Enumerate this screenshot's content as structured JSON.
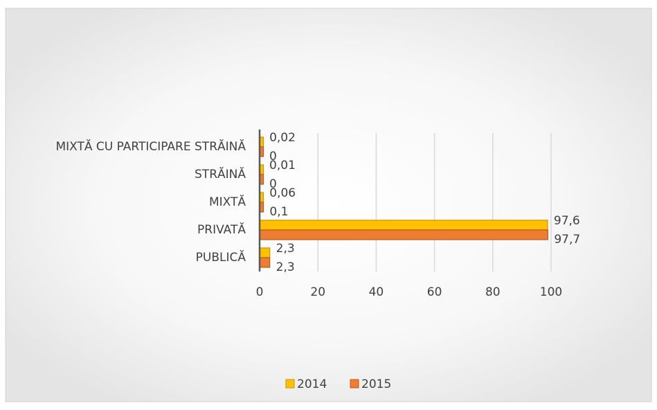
{
  "chart_data": {
    "type": "bar",
    "orientation": "horizontal",
    "categories": [
      "PUBLICĂ",
      "PRIVATĂ",
      "MIXTĂ",
      "STRĂINĂ",
      "MIXTĂ CU PARTICIPARE STRĂINĂ"
    ],
    "series": [
      {
        "name": "2014",
        "color": "#ffc000",
        "values": [
          2.3,
          97.6,
          0.06,
          0.01,
          0.02
        ],
        "value_labels": [
          "2,3",
          "97,6",
          "0,06",
          "0,01",
          "0,02"
        ]
      },
      {
        "name": "2015",
        "color": "#ed7d31",
        "values": [
          2.3,
          97.7,
          0.1,
          0,
          0
        ],
        "value_labels": [
          "2,3",
          "97,7",
          "0,1",
          "0",
          "0"
        ]
      }
    ],
    "xlim": [
      0,
      100
    ],
    "xticks": [
      0,
      20,
      40,
      60,
      80,
      100
    ],
    "grid": true,
    "legend": "bottom"
  }
}
